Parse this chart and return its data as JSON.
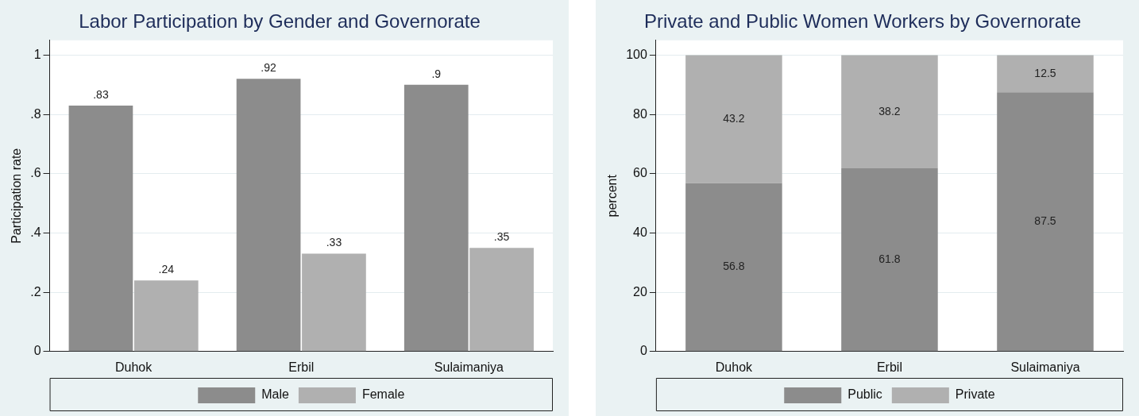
{
  "chart_data": [
    {
      "type": "bar",
      "title": "Labor Participation by Gender and Governorate",
      "ylabel": "Participation rate",
      "categories": [
        "Duhok",
        "Erbil",
        "Sulaimaniya"
      ],
      "series": [
        {
          "name": "Male",
          "color": "#8c8c8c",
          "values": [
            0.83,
            0.92,
            0.9
          ],
          "value_labels": [
            ".83",
            ".92",
            ".9"
          ]
        },
        {
          "name": "Female",
          "color": "#b0b0b0",
          "values": [
            0.24,
            0.33,
            0.35
          ],
          "value_labels": [
            ".24",
            ".33",
            ".35"
          ]
        }
      ],
      "ylim": [
        0,
        1.05
      ],
      "yticks": [
        {
          "value": 0,
          "label": "0"
        },
        {
          "value": 0.2,
          "label": ".2"
        },
        {
          "value": 0.4,
          "label": ".4"
        },
        {
          "value": 0.6,
          "label": ".6"
        },
        {
          "value": 0.8,
          "label": ".8"
        },
        {
          "value": 1,
          "label": "1"
        }
      ],
      "grid": "y",
      "legend": "bottom"
    },
    {
      "type": "bar",
      "title": "Private and Public Women Workers by Governorate",
      "ylabel": "percent",
      "categories": [
        "Duhok",
        "Erbil",
        "Sulaimaniya"
      ],
      "stacked": true,
      "series": [
        {
          "name": "Public",
          "color": "#8c8c8c",
          "values": [
            56.8,
            61.8,
            87.5
          ]
        },
        {
          "name": "Private",
          "color": "#b0b0b0",
          "values": [
            43.2,
            38.2,
            12.5
          ]
        }
      ],
      "ylim": [
        0,
        105
      ],
      "yticks": [
        0,
        20,
        40,
        60,
        80,
        100
      ],
      "grid": "y",
      "legend": "bottom",
      "data_labels": true
    }
  ]
}
